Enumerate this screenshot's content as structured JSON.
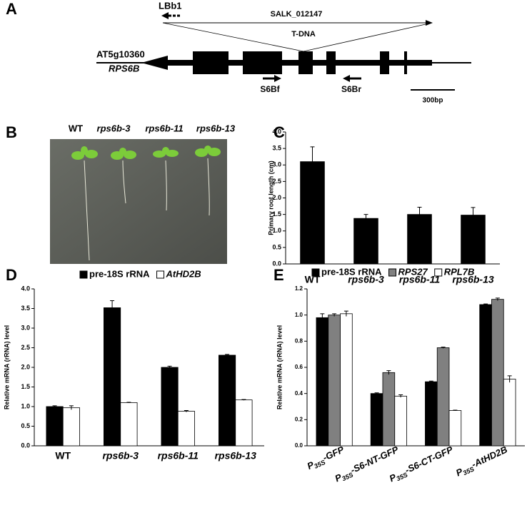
{
  "panel_a": {
    "label": "A",
    "primer_lb": "LBb1",
    "insert_name": "SALK_012147",
    "insert_type": "T-DNA",
    "gene_id": "AT5g10360",
    "gene_name": "RPS6B",
    "primer_f": "S6Bf",
    "primer_r": "S6Br",
    "scale": "300bp"
  },
  "panel_b": {
    "label": "B",
    "lines": [
      "WT",
      "rps6b-3",
      "rps6b-11",
      "rps6b-13"
    ]
  },
  "chart_data": [
    {
      "type": "bar",
      "label": "C",
      "ylabel": "Primary root length (cm)",
      "categories": [
        "WT",
        "rps6b-3",
        "rps6b-11",
        "rps6b-13"
      ],
      "category_italic": [
        false,
        true,
        true,
        true
      ],
      "series": [
        {
          "name": null,
          "color": "#000000",
          "values": [
            3.1,
            1.38,
            1.5,
            1.48
          ],
          "errors": [
            0.45,
            0.12,
            0.22,
            0.23
          ]
        }
      ],
      "ylim": [
        0,
        4
      ],
      "yticks": [
        {
          "value": 0,
          "label": "0.0"
        },
        {
          "value": 0.5,
          "label": "0.5"
        },
        {
          "value": 1,
          "label": "1.0"
        },
        {
          "value": 1.5,
          "label": "1.5"
        },
        {
          "value": 2,
          "label": "2.0"
        },
        {
          "value": 2.5,
          "label": "2.5"
        },
        {
          "value": 3,
          "label": "3.0"
        },
        {
          "value": 3.5,
          "label": "3.5"
        },
        {
          "value": 4,
          "label": "4.0"
        }
      ]
    },
    {
      "type": "bar",
      "label": "D",
      "ylabel": "Relative mRNA (rRNA)  level",
      "categories": [
        "WT",
        "rps6b-3",
        "rps6b-11",
        "rps6b-13"
      ],
      "category_italic": [
        false,
        true,
        true,
        true
      ],
      "series": [
        {
          "name": "pre-18S rRNA",
          "color": "#000000",
          "italic": false,
          "values": [
            1.0,
            3.52,
            2.0,
            2.31
          ],
          "errors": [
            0.02,
            0.18,
            0.03,
            0.02
          ]
        },
        {
          "name": "AtHD2B",
          "color": "#ffffff",
          "italic": true,
          "values": [
            0.97,
            1.1,
            0.88,
            1.17
          ],
          "errors": [
            0.05,
            0.01,
            0.02,
            0.01
          ]
        }
      ],
      "ylim": [
        0,
        4
      ],
      "yticks": [
        {
          "value": 0,
          "label": "0.0"
        },
        {
          "value": 0.5,
          "label": "0.5"
        },
        {
          "value": 1,
          "label": "1.0"
        },
        {
          "value": 1.5,
          "label": "1.5"
        },
        {
          "value": 2,
          "label": "2.0"
        },
        {
          "value": 2.5,
          "label": "2.5"
        },
        {
          "value": 3,
          "label": "3.0"
        },
        {
          "value": 3.5,
          "label": "3.5"
        },
        {
          "value": 4,
          "label": "4.0"
        }
      ]
    },
    {
      "type": "bar",
      "label": "E",
      "ylabel": "Relative mRNA (rRNA)  level",
      "categories": [
        "P35S-GFP",
        "P35S-S6-NT-GFP",
        "P35S-S6-CT-GFP",
        "P35S-AtHD2B"
      ],
      "category_italic": [
        true,
        true,
        true,
        true
      ],
      "series": [
        {
          "name": "pre-18S rRNA",
          "color": "#000000",
          "italic": false,
          "values": [
            0.98,
            0.4,
            0.49,
            1.08
          ],
          "errors": [
            0.03,
            0.005,
            0.005,
            0.005
          ]
        },
        {
          "name": "RPS27",
          "color": "#808080",
          "italic": true,
          "values": [
            1.0,
            0.56,
            0.75,
            1.12
          ],
          "errors": [
            0.01,
            0.015,
            0.005,
            0.01
          ]
        },
        {
          "name": "RPL7B",
          "color": "#ffffff",
          "italic": true,
          "values": [
            1.01,
            0.38,
            0.27,
            0.51
          ],
          "errors": [
            0.02,
            0.01,
            0.003,
            0.025
          ]
        }
      ],
      "ylim": [
        0,
        1.2
      ],
      "yticks": [
        {
          "value": 0,
          "label": "0.0"
        },
        {
          "value": 0.2,
          "label": "0.2"
        },
        {
          "value": 0.4,
          "label": "0.4"
        },
        {
          "value": 0.6,
          "label": "0.6"
        },
        {
          "value": 0.8,
          "label": "0.8"
        },
        {
          "value": 1,
          "label": "1.0"
        },
        {
          "value": 1.2,
          "label": "1.2"
        }
      ]
    }
  ]
}
